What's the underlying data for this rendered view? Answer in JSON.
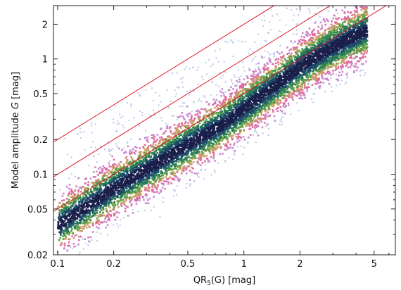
{
  "chart_data": {
    "type": "scatter",
    "title": "",
    "xlabel": "QR",
    "xlabel_sub": "5",
    "xlabel_rest": "(G) [mag]",
    "ylabel_prefix": "Model amplitude ",
    "ylabel_var": "G",
    "ylabel_suffix": " [mag]",
    "xscale": "log",
    "yscale": "log",
    "xlim": [
      0.095,
      6.5
    ],
    "ylim": [
      0.02,
      2.9
    ],
    "xticks": [
      0.1,
      0.2,
      0.5,
      1,
      2,
      5
    ],
    "xtick_labels": [
      "0.1",
      "0.2",
      "0.5",
      "1",
      "2",
      "5"
    ],
    "yticks": [
      0.02,
      0.05,
      0.1,
      0.2,
      0.5,
      1,
      2
    ],
    "ytick_labels": [
      "0.02",
      "0.05",
      "0.1",
      "0.2",
      "0.5",
      "1",
      "2"
    ],
    "grid": false,
    "density_colors": [
      "#b9c6e6",
      "#c98ad0",
      "#e06aa0",
      "#c8a060",
      "#5aa04a",
      "#2a7a5a",
      "#1f4a6a",
      "#1a1f4a"
    ],
    "reference_lines": [
      {
        "name": "",
        "slope": 1,
        "factor": 1.0,
        "color": "#e0182a"
      },
      {
        "name": "",
        "slope": 1,
        "factor": 2.0,
        "color": "#e0182a"
      },
      {
        "name": "",
        "slope": 1,
        "factor": 0.5,
        "color": "#e0182a"
      }
    ],
    "density_ridge": {
      "x": [
        0.1,
        0.15,
        0.2,
        0.3,
        0.5,
        0.8,
        1.0,
        1.5,
        2.0,
        2.7,
        3.5,
        4.0
      ],
      "y": [
        0.036,
        0.055,
        0.075,
        0.11,
        0.18,
        0.28,
        0.37,
        0.6,
        0.85,
        1.15,
        1.45,
        1.6
      ]
    }
  }
}
